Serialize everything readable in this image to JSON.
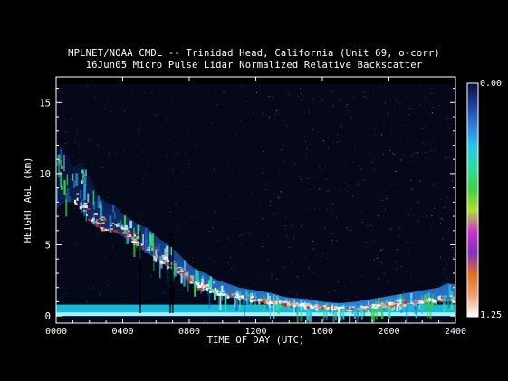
{
  "chart_data": {
    "type": "heatmap",
    "title": "MPLNET/NOAA CMDL -- Trinidad Head, California (Unit 69, o-corr)",
    "subtitle": "16Jun05 Micro Pulse Lidar Normalized Relative Backscatter",
    "xlabel": "TIME OF DAY (UTC)",
    "ylabel": "HEIGHT AGL (km)",
    "x_ticks": [
      "0000",
      "0400",
      "0800",
      "1200",
      "1600",
      "2000",
      "2400"
    ],
    "x_tick_hours": [
      0,
      4,
      8,
      12,
      16,
      20,
      24
    ],
    "xlim_hours": [
      0,
      24
    ],
    "y_ticks": [
      "0",
      "5",
      "10",
      "15"
    ],
    "y_tick_values": [
      0,
      5,
      10,
      15
    ],
    "ylim_km": [
      -0.5,
      16.8
    ],
    "data_top_km": 16.3,
    "colorbar": {
      "min_label": "0.00",
      "max_label": "1.25",
      "range": [
        0,
        1.25
      ],
      "colors": [
        "#0a0f3a",
        "#1a3d9a",
        "#2f7fe0",
        "#2ac8e8",
        "#29e0a0",
        "#40d040",
        "#b0e030",
        "#d030d0",
        "#8030c0",
        "#e07020",
        "#f0a070",
        "#ffffff"
      ]
    },
    "cloud_top_km": [
      [
        0.0,
        12.1
      ],
      [
        0.5,
        11.8
      ],
      [
        1.0,
        10.5
      ],
      [
        1.5,
        10.8
      ],
      [
        2.0,
        9.8
      ],
      [
        2.5,
        8.5
      ],
      [
        3.0,
        8.0
      ],
      [
        3.5,
        7.8
      ],
      [
        4.0,
        7.2
      ],
      [
        4.5,
        6.8
      ],
      [
        5.0,
        6.4
      ],
      [
        5.5,
        6.2
      ],
      [
        6.0,
        5.6
      ],
      [
        6.5,
        5.2
      ],
      [
        7.0,
        4.8
      ],
      [
        7.5,
        4.2
      ],
      [
        8.0,
        3.6
      ],
      [
        8.5,
        3.2
      ],
      [
        9.0,
        3.0
      ],
      [
        9.5,
        2.6
      ],
      [
        10.0,
        2.4
      ],
      [
        10.5,
        2.2
      ],
      [
        11.0,
        2.0
      ],
      [
        11.5,
        1.9
      ],
      [
        12.0,
        1.8
      ],
      [
        12.5,
        1.7
      ],
      [
        13.0,
        1.6
      ],
      [
        13.5,
        1.4
      ],
      [
        14.0,
        1.3
      ],
      [
        15.0,
        1.2
      ],
      [
        16.0,
        1.0
      ],
      [
        17.0,
        0.9
      ],
      [
        18.0,
        1.0
      ],
      [
        19.0,
        1.2
      ],
      [
        20.0,
        1.4
      ],
      [
        21.0,
        1.6
      ],
      [
        22.0,
        1.8
      ],
      [
        23.0,
        2.0
      ],
      [
        23.5,
        2.3
      ],
      [
        24.0,
        2.2
      ]
    ],
    "cloud_base_km": [
      [
        0.0,
        7.5
      ],
      [
        0.5,
        8.0
      ],
      [
        1.0,
        8.0
      ],
      [
        1.5,
        7.6
      ],
      [
        2.0,
        6.6
      ],
      [
        2.5,
        6.2
      ],
      [
        3.0,
        6.0
      ],
      [
        3.5,
        5.9
      ],
      [
        4.0,
        5.6
      ],
      [
        4.5,
        5.2
      ],
      [
        5.0,
        4.8
      ],
      [
        5.5,
        4.4
      ],
      [
        6.0,
        4.0
      ],
      [
        6.5,
        3.6
      ],
      [
        7.0,
        3.2
      ],
      [
        7.5,
        2.8
      ],
      [
        8.0,
        2.4
      ],
      [
        8.5,
        2.0
      ],
      [
        9.0,
        1.8
      ],
      [
        9.5,
        1.6
      ],
      [
        10.0,
        1.4
      ],
      [
        10.5,
        1.3
      ],
      [
        11.0,
        1.2
      ],
      [
        11.5,
        1.1
      ],
      [
        12.0,
        1.0
      ],
      [
        13.0,
        0.9
      ],
      [
        14.0,
        0.8
      ],
      [
        15.0,
        0.7
      ],
      [
        16.0,
        0.6
      ],
      [
        17.0,
        0.5
      ],
      [
        18.0,
        0.5
      ],
      [
        19.0,
        0.6
      ],
      [
        20.0,
        0.7
      ],
      [
        21.0,
        0.8
      ],
      [
        22.0,
        0.9
      ],
      [
        23.0,
        1.0
      ],
      [
        24.0,
        1.0
      ]
    ],
    "boundary_layer_top_km": 0.8
  }
}
